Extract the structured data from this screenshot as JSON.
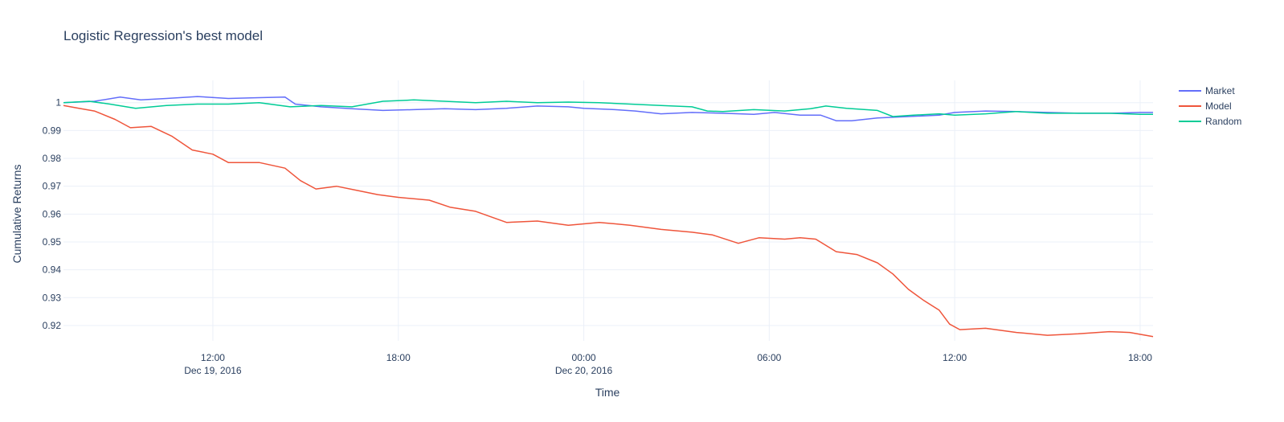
{
  "chart_data": {
    "type": "line",
    "title": "Logistic Regression's best model",
    "xlabel": "Time",
    "ylabel": "Cumulative Returns",
    "ylim": [
      0.9145,
      1.008
    ],
    "xlim": [
      "2016-12-19 07:10",
      "2016-12-20 18:25"
    ],
    "grid": true,
    "legend_position": "top-right",
    "y_ticks": [
      {
        "value": 0.92,
        "label": "0.92"
      },
      {
        "value": 0.93,
        "label": "0.93"
      },
      {
        "value": 0.94,
        "label": "0.94"
      },
      {
        "value": 0.95,
        "label": "0.95"
      },
      {
        "value": 0.96,
        "label": "0.96"
      },
      {
        "value": 0.97,
        "label": "0.97"
      },
      {
        "value": 0.98,
        "label": "0.98"
      },
      {
        "value": 0.99,
        "label": "0.99"
      },
      {
        "value": 1.0,
        "label": "1"
      }
    ],
    "x_ticks": [
      {
        "value": "2016-12-19 12:00",
        "label": "12:00",
        "sublabel": "Dec 19, 2016"
      },
      {
        "value": "2016-12-19 18:00",
        "label": "18:00",
        "sublabel": ""
      },
      {
        "value": "2016-12-20 00:00",
        "label": "00:00",
        "sublabel": "Dec 20, 2016"
      },
      {
        "value": "2016-12-20 06:00",
        "label": "06:00",
        "sublabel": ""
      },
      {
        "value": "2016-12-20 12:00",
        "label": "12:00",
        "sublabel": ""
      },
      {
        "value": "2016-12-20 18:00",
        "label": "18:00",
        "sublabel": ""
      }
    ],
    "series": [
      {
        "name": "Market",
        "color": "#636efa",
        "points": [
          [
            "2016-12-19 07:10",
            1.0
          ],
          [
            "2016-12-19 08:10",
            1.0005
          ],
          [
            "2016-12-19 09:00",
            1.002
          ],
          [
            "2016-12-19 09:40",
            1.001
          ],
          [
            "2016-12-19 10:30",
            1.0015
          ],
          [
            "2016-12-19 11:30",
            1.0022
          ],
          [
            "2016-12-19 12:30",
            1.0015
          ],
          [
            "2016-12-19 13:30",
            1.0018
          ],
          [
            "2016-12-19 14:20",
            1.002
          ],
          [
            "2016-12-19 14:40",
            0.9995
          ],
          [
            "2016-12-19 15:30",
            0.9985
          ],
          [
            "2016-12-19 16:30",
            0.9978
          ],
          [
            "2016-12-19 17:30",
            0.9972
          ],
          [
            "2016-12-19 18:30",
            0.9975
          ],
          [
            "2016-12-19 19:30",
            0.9978
          ],
          [
            "2016-12-19 20:30",
            0.9975
          ],
          [
            "2016-12-19 21:30",
            0.998
          ],
          [
            "2016-12-19 22:30",
            0.9988
          ],
          [
            "2016-12-19 23:30",
            0.9985
          ],
          [
            "2016-12-20 00:00",
            0.998
          ],
          [
            "2016-12-20 01:00",
            0.9975
          ],
          [
            "2016-12-20 01:40",
            0.997
          ],
          [
            "2016-12-20 02:30",
            0.996
          ],
          [
            "2016-12-20 03:30",
            0.9965
          ],
          [
            "2016-12-20 04:30",
            0.9962
          ],
          [
            "2016-12-20 05:30",
            0.9958
          ],
          [
            "2016-12-20 06:10",
            0.9965
          ],
          [
            "2016-12-20 07:00",
            0.9955
          ],
          [
            "2016-12-20 07:40",
            0.9955
          ],
          [
            "2016-12-20 08:10",
            0.9935
          ],
          [
            "2016-12-20 08:40",
            0.9935
          ],
          [
            "2016-12-20 09:30",
            0.9945
          ],
          [
            "2016-12-20 10:30",
            0.995
          ],
          [
            "2016-12-20 11:30",
            0.9955
          ],
          [
            "2016-12-20 12:00",
            0.9965
          ],
          [
            "2016-12-20 13:00",
            0.997
          ],
          [
            "2016-12-20 14:00",
            0.9968
          ],
          [
            "2016-12-20 15:00",
            0.9965
          ],
          [
            "2016-12-20 16:00",
            0.9962
          ],
          [
            "2016-12-20 17:00",
            0.9962
          ],
          [
            "2016-12-20 18:00",
            0.9965
          ],
          [
            "2016-12-20 18:25",
            0.9965
          ]
        ]
      },
      {
        "name": "Model",
        "color": "#ef553b",
        "points": [
          [
            "2016-12-19 07:10",
            0.999
          ],
          [
            "2016-12-19 07:40",
            0.998
          ],
          [
            "2016-12-19 08:10",
            0.997
          ],
          [
            "2016-12-19 08:50",
            0.994
          ],
          [
            "2016-12-19 09:20",
            0.991
          ],
          [
            "2016-12-19 10:00",
            0.9915
          ],
          [
            "2016-12-19 10:40",
            0.988
          ],
          [
            "2016-12-19 11:20",
            0.983
          ],
          [
            "2016-12-19 12:00",
            0.9815
          ],
          [
            "2016-12-19 12:30",
            0.9785
          ],
          [
            "2016-12-19 13:30",
            0.9785
          ],
          [
            "2016-12-19 14:20",
            0.9765
          ],
          [
            "2016-12-19 14:50",
            0.972
          ],
          [
            "2016-12-19 15:20",
            0.969
          ],
          [
            "2016-12-19 16:00",
            0.97
          ],
          [
            "2016-12-19 16:40",
            0.9685
          ],
          [
            "2016-12-19 17:20",
            0.967
          ],
          [
            "2016-12-19 18:00",
            0.966
          ],
          [
            "2016-12-19 19:00",
            0.965
          ],
          [
            "2016-12-19 19:40",
            0.9625
          ],
          [
            "2016-12-19 20:30",
            0.961
          ],
          [
            "2016-12-19 21:30",
            0.957
          ],
          [
            "2016-12-19 22:30",
            0.9575
          ],
          [
            "2016-12-19 23:30",
            0.956
          ],
          [
            "2016-12-20 00:30",
            0.957
          ],
          [
            "2016-12-20 01:30",
            0.956
          ],
          [
            "2016-12-20 02:30",
            0.9545
          ],
          [
            "2016-12-20 03:30",
            0.9535
          ],
          [
            "2016-12-20 04:10",
            0.9525
          ],
          [
            "2016-12-20 05:00",
            0.9495
          ],
          [
            "2016-12-20 05:40",
            0.9515
          ],
          [
            "2016-12-20 06:30",
            0.951
          ],
          [
            "2016-12-20 07:00",
            0.9515
          ],
          [
            "2016-12-20 07:30",
            0.951
          ],
          [
            "2016-12-20 08:10",
            0.9465
          ],
          [
            "2016-12-20 08:50",
            0.9455
          ],
          [
            "2016-12-20 09:30",
            0.9425
          ],
          [
            "2016-12-20 10:00",
            0.9385
          ],
          [
            "2016-12-20 10:30",
            0.933
          ],
          [
            "2016-12-20 11:00",
            0.929
          ],
          [
            "2016-12-20 11:30",
            0.9255
          ],
          [
            "2016-12-20 11:50",
            0.9205
          ],
          [
            "2016-12-20 12:10",
            0.9185
          ],
          [
            "2016-12-20 13:00",
            0.919
          ],
          [
            "2016-12-20 14:00",
            0.9175
          ],
          [
            "2016-12-20 15:00",
            0.9165
          ],
          [
            "2016-12-20 16:00",
            0.917
          ],
          [
            "2016-12-20 17:00",
            0.9178
          ],
          [
            "2016-12-20 17:40",
            0.9175
          ],
          [
            "2016-12-20 18:25",
            0.916
          ]
        ]
      },
      {
        "name": "Random",
        "color": "#00cc96",
        "points": [
          [
            "2016-12-19 07:10",
            1.0
          ],
          [
            "2016-12-19 08:00",
            1.0005
          ],
          [
            "2016-12-19 08:40",
            0.9995
          ],
          [
            "2016-12-19 09:30",
            0.998
          ],
          [
            "2016-12-19 10:30",
            0.999
          ],
          [
            "2016-12-19 11:30",
            0.9995
          ],
          [
            "2016-12-19 12:30",
            0.9995
          ],
          [
            "2016-12-19 13:30",
            1.0
          ],
          [
            "2016-12-19 14:30",
            0.9985
          ],
          [
            "2016-12-19 15:30",
            0.999
          ],
          [
            "2016-12-19 16:30",
            0.9985
          ],
          [
            "2016-12-19 17:30",
            1.0005
          ],
          [
            "2016-12-19 18:30",
            1.001
          ],
          [
            "2016-12-19 19:30",
            1.0005
          ],
          [
            "2016-12-19 20:30",
            1.0
          ],
          [
            "2016-12-19 21:30",
            1.0005
          ],
          [
            "2016-12-19 22:30",
            1.0
          ],
          [
            "2016-12-19 23:30",
            1.0002
          ],
          [
            "2016-12-20 00:30",
            1.0
          ],
          [
            "2016-12-20 01:30",
            0.9995
          ],
          [
            "2016-12-20 02:30",
            0.999
          ],
          [
            "2016-12-20 03:30",
            0.9985
          ],
          [
            "2016-12-20 04:00",
            0.997
          ],
          [
            "2016-12-20 04:30",
            0.9968
          ],
          [
            "2016-12-20 05:30",
            0.9975
          ],
          [
            "2016-12-20 06:30",
            0.997
          ],
          [
            "2016-12-20 07:20",
            0.9978
          ],
          [
            "2016-12-20 07:50",
            0.9988
          ],
          [
            "2016-12-20 08:30",
            0.998
          ],
          [
            "2016-12-20 09:30",
            0.9972
          ],
          [
            "2016-12-20 10:00",
            0.995
          ],
          [
            "2016-12-20 10:40",
            0.9955
          ],
          [
            "2016-12-20 11:30",
            0.996
          ],
          [
            "2016-12-20 12:00",
            0.9955
          ],
          [
            "2016-12-20 13:00",
            0.996
          ],
          [
            "2016-12-20 14:00",
            0.9968
          ],
          [
            "2016-12-20 15:00",
            0.9962
          ],
          [
            "2016-12-20 16:00",
            0.9962
          ],
          [
            "2016-12-20 17:00",
            0.9962
          ],
          [
            "2016-12-20 18:00",
            0.9958
          ],
          [
            "2016-12-20 18:25",
            0.9958
          ]
        ]
      }
    ]
  }
}
